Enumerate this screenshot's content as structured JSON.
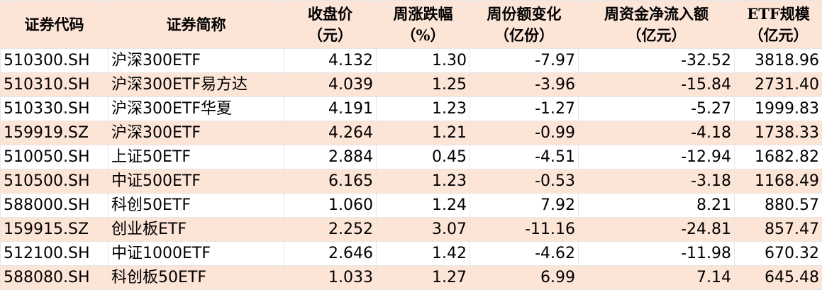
{
  "table": {
    "header": [
      [
        "证券代码"
      ],
      [
        "证券简称"
      ],
      [
        "收盘价",
        "（元）"
      ],
      [
        "周涨跌幅",
        "（%）"
      ],
      [
        "周份额变化",
        "（亿份）"
      ],
      [
        "周资金净流入额",
        "（亿元）"
      ],
      [
        "ETF规模",
        "（亿元）"
      ]
    ],
    "rows": [
      [
        "510300.SH",
        "沪深300ETF",
        "4.132",
        "1.30",
        "-7.97",
        "-32.52",
        "3818.96"
      ],
      [
        "510310.SH",
        "沪深300ETF易方达",
        "4.039",
        "1.25",
        "-3.96",
        "-15.84",
        "2731.40"
      ],
      [
        "510330.SH",
        "沪深300ETF华夏",
        "4.191",
        "1.23",
        "-1.27",
        "-5.27",
        "1999.83"
      ],
      [
        "159919.SZ",
        "沪深300ETF",
        "4.264",
        "1.21",
        "-0.99",
        "-4.18",
        "1738.33"
      ],
      [
        "510050.SH",
        "上证50ETF",
        "2.884",
        "0.45",
        "-4.51",
        "-12.94",
        "1682.82"
      ],
      [
        "510500.SH",
        "中证500ETF",
        "6.165",
        "1.23",
        "-0.53",
        "-3.18",
        "1168.49"
      ],
      [
        "588000.SH",
        "科创50ETF",
        "1.060",
        "1.24",
        "7.92",
        "8.21",
        "880.57"
      ],
      [
        "159915.SZ",
        "创业板ETF",
        "2.252",
        "3.07",
        "-11.16",
        "-24.81",
        "857.47"
      ],
      [
        "512100.SH",
        "中证1000ETF",
        "2.646",
        "1.42",
        "-4.62",
        "-11.98",
        "670.32"
      ],
      [
        "588080.SH",
        "科创板50ETF",
        "1.033",
        "1.27",
        "6.99",
        "7.14",
        "645.48"
      ]
    ]
  }
}
